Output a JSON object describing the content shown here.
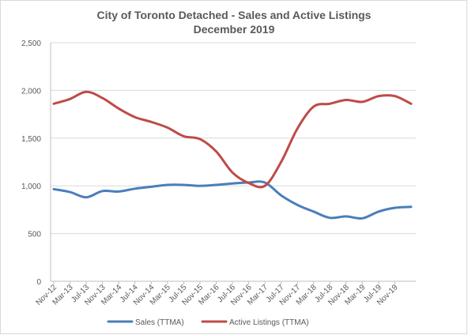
{
  "chart_data": {
    "type": "line",
    "title": "City of Toronto Detached - Sales and Active Listings",
    "subtitle": "December 2019",
    "xlabel": "",
    "ylabel": "",
    "ylim": [
      0,
      2500
    ],
    "y_ticks": [
      "0",
      "500",
      "1,000",
      "1,500",
      "2,000",
      "2,500"
    ],
    "y_tick_values": [
      0,
      500,
      1000,
      1500,
      2000,
      2500
    ],
    "x_tick_labels": [
      "Nov-12",
      "Mar-13",
      "Jul-13",
      "Nov-13",
      "Mar-14",
      "Jul-14",
      "Nov-14",
      "Mar-15",
      "Jul-15",
      "Nov-15",
      "Mar-16",
      "Jul-16",
      "Nov-16",
      "Mar-17",
      "Jul-17",
      "Nov-17",
      "Mar-18",
      "Jul-18",
      "Nov-18",
      "Mar-19",
      "Jul-19",
      "Nov-19"
    ],
    "grid": "horizontal",
    "legend_position": "bottom",
    "x": [
      "Nov-12",
      "Mar-13",
      "Jul-13",
      "Nov-13",
      "Mar-14",
      "Jul-14",
      "Nov-14",
      "Mar-15",
      "Jul-15",
      "Nov-15",
      "Mar-16",
      "Jul-16",
      "Nov-16",
      "Mar-17",
      "Jul-17",
      "Nov-17",
      "Mar-18",
      "Jul-18",
      "Nov-18",
      "Mar-19",
      "Jul-19",
      "Nov-19",
      "Dec-19"
    ],
    "series": [
      {
        "name": "Sales (TTMA)",
        "color": "#4a7ebb",
        "values": [
          965,
          935,
          880,
          945,
          940,
          970,
          990,
          1010,
          1010,
          1000,
          1010,
          1025,
          1035,
          1035,
          900,
          800,
          730,
          665,
          680,
          660,
          730,
          770,
          780
        ]
      },
      {
        "name": "Active Listings (TTMA)",
        "color": "#be4b48",
        "values": [
          1860,
          1910,
          1985,
          1920,
          1810,
          1720,
          1670,
          1610,
          1520,
          1490,
          1360,
          1140,
          1030,
          1000,
          1250,
          1600,
          1830,
          1860,
          1900,
          1880,
          1940,
          1940,
          1860
        ]
      }
    ]
  }
}
